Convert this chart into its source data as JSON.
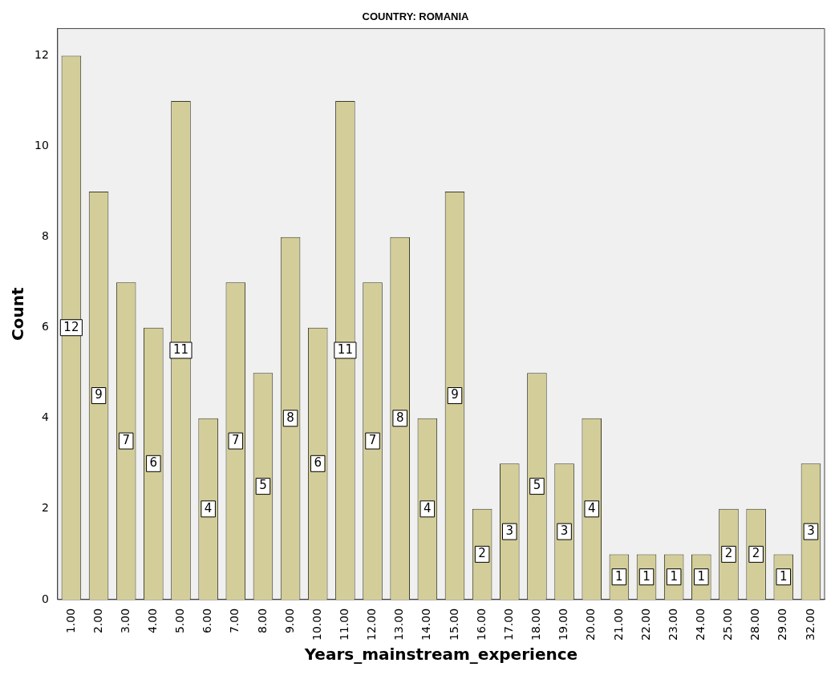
{
  "chart_data": {
    "type": "bar",
    "title": "COUNTRY: ROMANIA",
    "xlabel": "Years_mainstream_experience",
    "ylabel": "Count",
    "categories": [
      "1.00",
      "2.00",
      "3.00",
      "4.00",
      "5.00",
      "6.00",
      "7.00",
      "8.00",
      "9.00",
      "10.00",
      "11.00",
      "12.00",
      "13.00",
      "14.00",
      "15.00",
      "16.00",
      "17.00",
      "18.00",
      "19.00",
      "20.00",
      "21.00",
      "22.00",
      "23.00",
      "24.00",
      "25.00",
      "28.00",
      "29.00",
      "32.00"
    ],
    "values": [
      12,
      9,
      7,
      6,
      11,
      4,
      7,
      5,
      8,
      6,
      11,
      7,
      8,
      4,
      9,
      2,
      3,
      5,
      3,
      4,
      1,
      1,
      1,
      1,
      2,
      2,
      1,
      3
    ],
    "color": "#d3ce99",
    "ylim": [
      0,
      12.6
    ],
    "yticks": [
      0,
      2,
      4,
      6,
      8,
      10,
      12
    ],
    "grid": false,
    "legend": false,
    "data_labels": true
  }
}
